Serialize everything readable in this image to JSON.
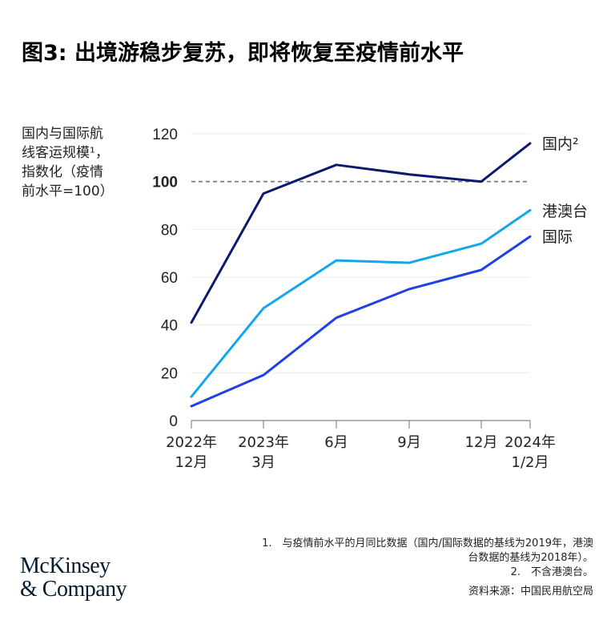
{
  "title": "图3: 出境游稳步复苏，即将恢复至疫情前水平",
  "y_axis_label_lines": [
    "国内与国际航",
    "线客运规模¹，",
    "指数化（疫情",
    "前水平=100）"
  ],
  "footnotes": {
    "note1_line1": "1.　与疫情前水平的月同比数据（国内/国际数据的基线为2019年，港澳",
    "note1_line2": "台数据的基线为2018年）。",
    "note2": "2.　不含港澳台。",
    "source": "资料来源：中国民用航空局"
  },
  "logo": {
    "line1": "McKinsey",
    "line2": "& Company"
  },
  "colors": {
    "domestic": "#0b1a6e",
    "hmt": "#13a7ea",
    "international": "#1f40e6",
    "grid": "#ececec",
    "reference": "#777777",
    "axis": "#888888"
  },
  "chart_data": {
    "type": "line",
    "title": "图3: 出境游稳步复苏，即将恢复至疫情前水平",
    "xlabel": "",
    "ylabel": "国内与国际航线客运规模¹，指数化（疫情前水平=100）",
    "categories": [
      "2022年 12月",
      "2023年 3月",
      "6月",
      "9月",
      "12月",
      "2024年 1/2月"
    ],
    "category_lines": [
      [
        "2022年",
        "12月"
      ],
      [
        "2023年",
        "3月"
      ],
      [
        "6月"
      ],
      [
        "9月"
      ],
      [
        "12月"
      ],
      [
        "2024年",
        "1/2月"
      ]
    ],
    "ylim": [
      0,
      120
    ],
    "yticks": [
      0,
      20,
      40,
      60,
      80,
      100,
      120
    ],
    "reference_line": {
      "y": 100,
      "style": "dashed",
      "label": "100"
    },
    "grid": true,
    "series": [
      {
        "name": "国内²",
        "key": "domestic",
        "values": [
          41,
          95,
          107,
          103,
          100,
          116
        ]
      },
      {
        "name": "港澳台",
        "key": "hmt",
        "values": [
          10,
          47,
          67,
          66,
          74,
          88
        ]
      },
      {
        "name": "国际",
        "key": "international",
        "values": [
          6,
          19,
          43,
          55,
          63,
          77
        ]
      }
    ],
    "legend_position": "right (direct line labels)"
  }
}
